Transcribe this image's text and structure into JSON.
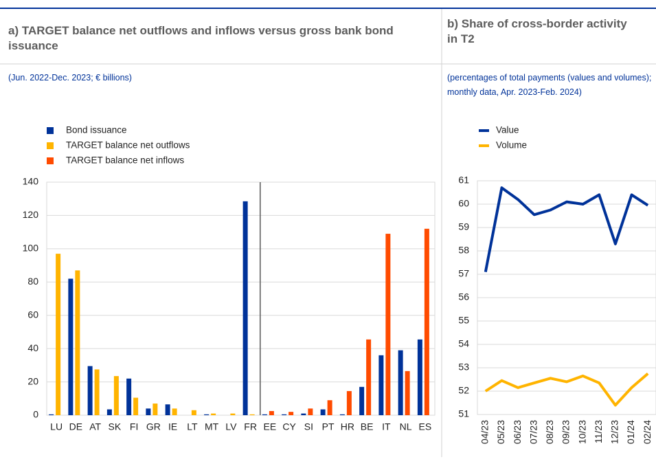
{
  "chart_data": [
    {
      "type": "bar",
      "title": "a) TARGET balance net outflows and inflows versus gross bank bond issuance",
      "subtitle": "(Jun. 2022-Dec. 2023; € billions)",
      "categories": [
        "LU",
        "DE",
        "AT",
        "SK",
        "FI",
        "GR",
        "IE",
        "LT",
        "MT",
        "LV",
        "FR",
        "EE",
        "CY",
        "SI",
        "PT",
        "HR",
        "BE",
        "IT",
        "NL",
        "ES"
      ],
      "series": [
        {
          "name": "Bond issuance",
          "color": "#003299",
          "values": [
            0.5,
            82,
            29.5,
            3.5,
            22,
            4,
            6.5,
            null,
            0.5,
            null,
            128.5,
            0.5,
            0.5,
            1,
            3.5,
            0.5,
            17,
            36,
            39,
            45.5
          ]
        },
        {
          "name": "TARGET balance net outflows",
          "color": "#ffb400",
          "values": [
            97,
            87,
            27.5,
            23.5,
            10.5,
            7,
            4,
            3,
            1,
            1,
            0.5,
            null,
            null,
            null,
            null,
            null,
            null,
            null,
            null,
            null
          ]
        },
        {
          "name": "TARGET balance net inflows",
          "color": "#ff4b00",
          "values": [
            null,
            null,
            null,
            null,
            null,
            null,
            null,
            null,
            null,
            null,
            null,
            2.5,
            2,
            4,
            9,
            14.5,
            45.5,
            109,
            26.5,
            112
          ]
        }
      ],
      "ylim": [
        0,
        140
      ],
      "yticks": [
        0,
        20,
        40,
        60,
        80,
        100,
        120,
        140
      ],
      "grid": true
    },
    {
      "type": "line",
      "title": "b) Share of cross-border activity in T2",
      "subtitle": "(percentages of total payments (values and volumes); monthly data, Apr. 2023-Feb. 2024)",
      "categories": [
        "04/23",
        "05/23",
        "06/23",
        "07/23",
        "08/23",
        "09/23",
        "10/23",
        "11/23",
        "12/23",
        "01/24",
        "02/24"
      ],
      "series": [
        {
          "name": "Value",
          "color": "#003299",
          "values": [
            57.1,
            60.7,
            60.2,
            59.55,
            59.75,
            60.1,
            60.0,
            60.4,
            58.3,
            60.4,
            59.95
          ]
        },
        {
          "name": "Volume",
          "color": "#ffb400",
          "values": [
            52.0,
            52.45,
            52.15,
            52.35,
            52.55,
            52.4,
            52.65,
            52.35,
            51.4,
            52.15,
            52.75
          ]
        }
      ],
      "ylim": [
        51,
        61
      ],
      "yticks": [
        51,
        52,
        53,
        54,
        55,
        56,
        57,
        58,
        59,
        60,
        61
      ],
      "grid": true
    }
  ]
}
